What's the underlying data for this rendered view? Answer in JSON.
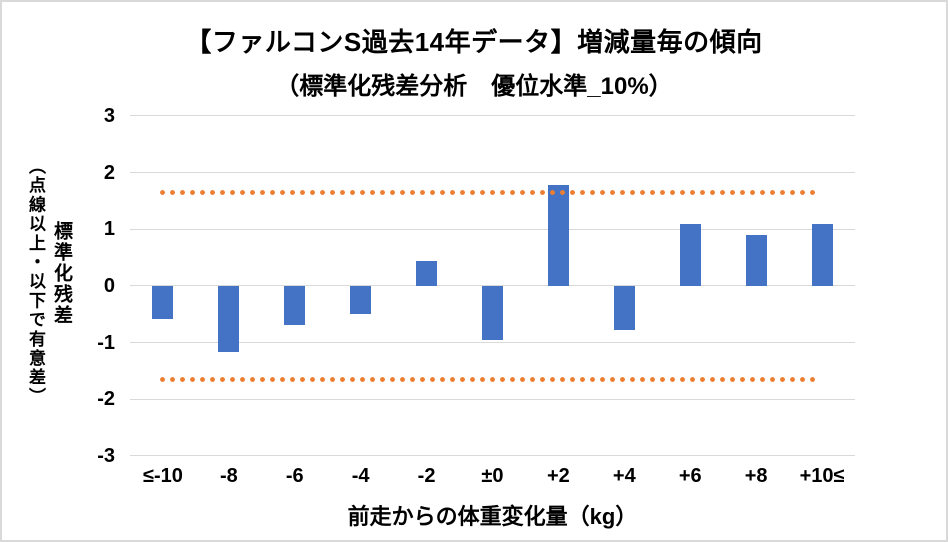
{
  "chart_data": {
    "type": "bar",
    "title": "【ファルコンS過去14年データ】増減量毎の傾向",
    "subtitle": "（標準化残差分析　優位水準_10%）",
    "xlabel": "前走からの体重変化量（kg）",
    "ylabel": "標準化残差",
    "ylabel_note": "（点線以上・以下で有意差）",
    "categories": [
      "≤-10",
      "-8",
      "-6",
      "-4",
      "-2",
      "±0",
      "+2",
      "+4",
      "+6",
      "+8",
      "+10≤"
    ],
    "values": [
      -0.59,
      -1.17,
      -0.68,
      -0.49,
      0.44,
      -0.96,
      1.79,
      -0.78,
      1.1,
      0.9,
      1.1
    ],
    "ylim": [
      -3,
      3
    ],
    "yticks": [
      3,
      2,
      1,
      0,
      -1,
      -2,
      -3
    ],
    "significance_lines": [
      1.645,
      -1.645
    ],
    "bar_color": "#4472C4",
    "sig_line_color": "#ED7D31",
    "gridline_color": "#D9D9D9",
    "grid": "horizontal",
    "legend_position": "none"
  }
}
